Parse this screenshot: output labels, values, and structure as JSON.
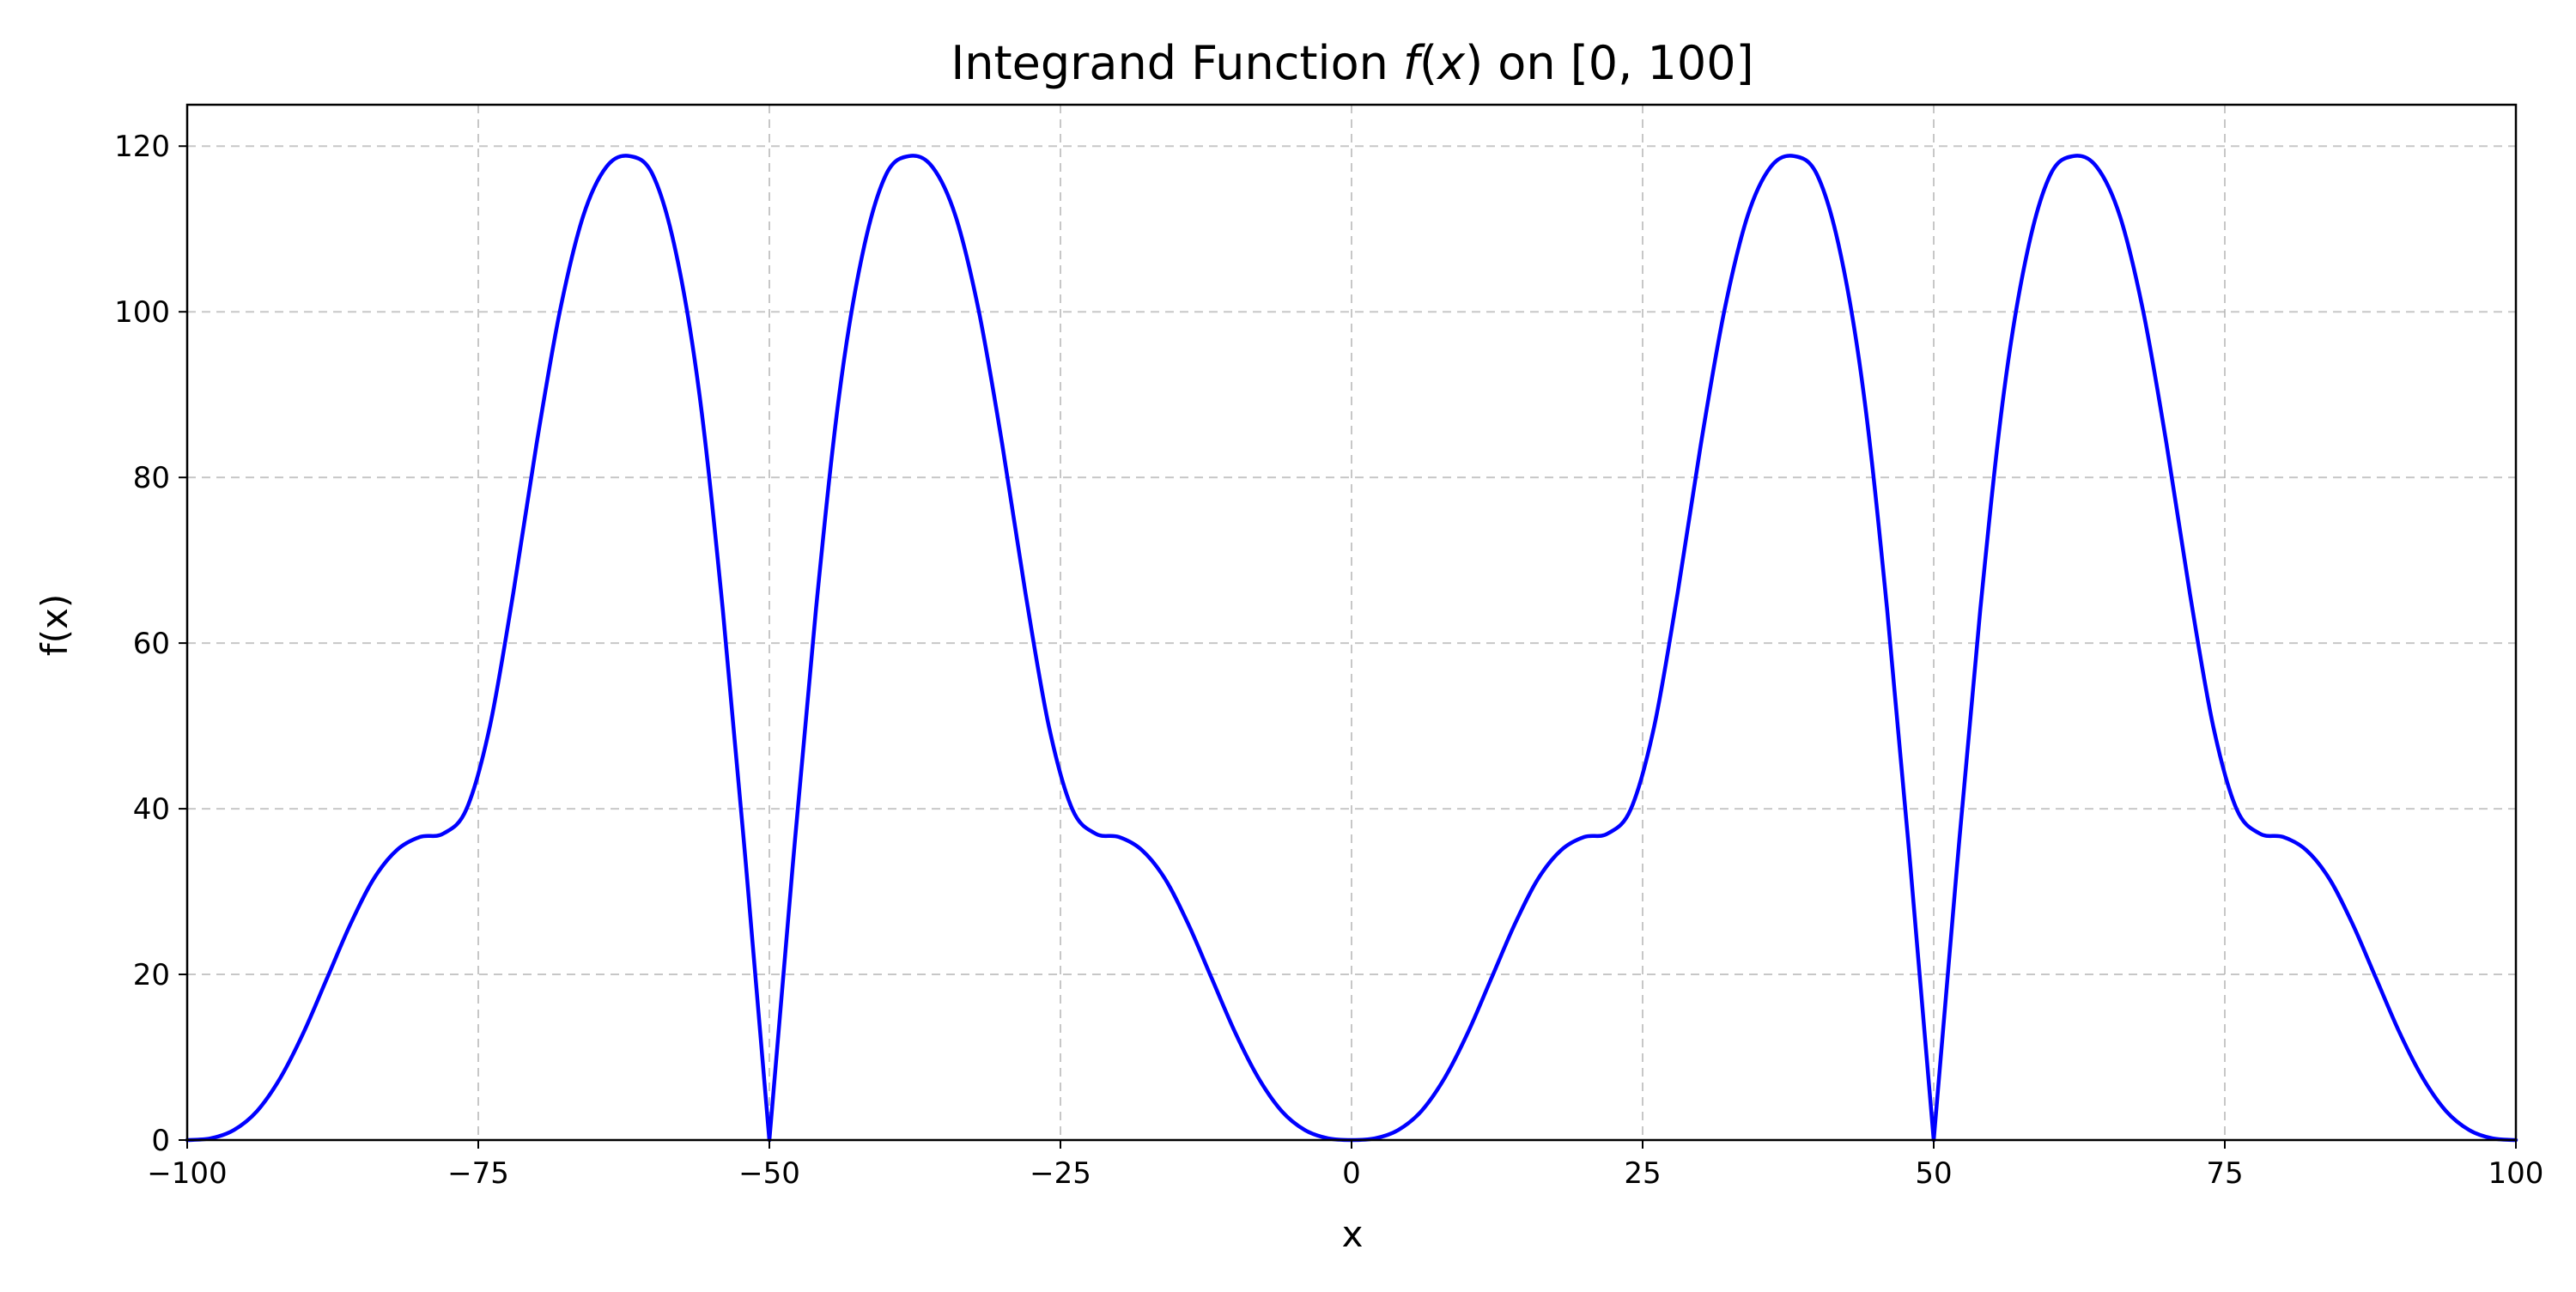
{
  "chart_data": {
    "type": "line",
    "title_parts": {
      "prefix": "Integrand Function ",
      "f": "f",
      "paren_open": "(",
      "x": "x",
      "paren_close": ")",
      "suffix": " on [0, 100]"
    },
    "xlabel": "x",
    "ylabel": "f(x)",
    "xlim": [
      -100,
      100
    ],
    "ylim": [
      0,
      125
    ],
    "x_ticks": [
      -100,
      -75,
      -50,
      -25,
      0,
      25,
      50,
      75,
      100
    ],
    "x_tick_labels": [
      "−100",
      "−75",
      "−50",
      "−25",
      "0",
      "25",
      "50",
      "75",
      "100"
    ],
    "y_ticks": [
      0,
      20,
      40,
      60,
      80,
      100,
      120
    ],
    "y_tick_labels": [
      "0",
      "20",
      "40",
      "60",
      "80",
      "100",
      "120"
    ],
    "grid": true,
    "series": [
      {
        "color": "#0000ff",
        "points": [
          [
            -100,
            0
          ],
          [
            -98,
            0.2
          ],
          [
            -96,
            1.2
          ],
          [
            -94,
            3.5
          ],
          [
            -92,
            7.5
          ],
          [
            -90,
            13.0
          ],
          [
            -88,
            19.5
          ],
          [
            -86,
            26.0
          ],
          [
            -84,
            31.5
          ],
          [
            -82,
            35.0
          ],
          [
            -80,
            36.6
          ],
          [
            -78,
            37.0
          ],
          [
            -76,
            40.0
          ],
          [
            -74,
            50.0
          ],
          [
            -72,
            66.0
          ],
          [
            -70,
            84.0
          ],
          [
            -68,
            100.0
          ],
          [
            -66,
            111.5
          ],
          [
            -64,
            117.5
          ],
          [
            -62,
            118.8
          ],
          [
            -60,
            116.5
          ],
          [
            -58,
            107.0
          ],
          [
            -56,
            90.0
          ],
          [
            -54,
            64.0
          ],
          [
            -52,
            33.0
          ],
          [
            -50,
            0
          ],
          [
            -48,
            33.0
          ],
          [
            -46,
            64.0
          ],
          [
            -44,
            90.0
          ],
          [
            -42,
            107.0
          ],
          [
            -40,
            116.5
          ],
          [
            -38,
            118.8
          ],
          [
            -36,
            117.5
          ],
          [
            -34,
            111.5
          ],
          [
            -32,
            100.0
          ],
          [
            -30,
            84.0
          ],
          [
            -28,
            66.0
          ],
          [
            -26,
            50.0
          ],
          [
            -24,
            40.0
          ],
          [
            -22,
            37.0
          ],
          [
            -20,
            36.6
          ],
          [
            -18,
            35.0
          ],
          [
            -16,
            31.5
          ],
          [
            -14,
            26.0
          ],
          [
            -12,
            19.5
          ],
          [
            -10,
            13.0
          ],
          [
            -8,
            7.5
          ],
          [
            -6,
            3.5
          ],
          [
            -4,
            1.2
          ],
          [
            -2,
            0.2
          ],
          [
            0,
            0
          ],
          [
            2,
            0.2
          ],
          [
            4,
            1.2
          ],
          [
            6,
            3.5
          ],
          [
            8,
            7.5
          ],
          [
            10,
            13.0
          ],
          [
            12,
            19.5
          ],
          [
            14,
            26.0
          ],
          [
            16,
            31.5
          ],
          [
            18,
            35.0
          ],
          [
            20,
            36.6
          ],
          [
            22,
            37.0
          ],
          [
            24,
            40.0
          ],
          [
            26,
            50.0
          ],
          [
            28,
            66.0
          ],
          [
            30,
            84.0
          ],
          [
            32,
            100.0
          ],
          [
            34,
            111.5
          ],
          [
            36,
            117.5
          ],
          [
            38,
            118.8
          ],
          [
            40,
            116.5
          ],
          [
            42,
            107.0
          ],
          [
            44,
            90.0
          ],
          [
            46,
            64.0
          ],
          [
            48,
            33.0
          ],
          [
            50,
            0
          ],
          [
            52,
            33.0
          ],
          [
            54,
            64.0
          ],
          [
            56,
            90.0
          ],
          [
            58,
            107.0
          ],
          [
            60,
            116.5
          ],
          [
            62,
            118.8
          ],
          [
            64,
            117.5
          ],
          [
            66,
            111.5
          ],
          [
            68,
            100.0
          ],
          [
            70,
            84.0
          ],
          [
            72,
            66.0
          ],
          [
            74,
            50.0
          ],
          [
            76,
            40.0
          ],
          [
            78,
            37.0
          ],
          [
            80,
            36.6
          ],
          [
            82,
            35.0
          ],
          [
            84,
            31.5
          ],
          [
            86,
            26.0
          ],
          [
            88,
            19.5
          ],
          [
            90,
            13.0
          ],
          [
            92,
            7.5
          ],
          [
            94,
            3.5
          ],
          [
            96,
            1.2
          ],
          [
            98,
            0.2
          ],
          [
            100,
            0
          ]
        ]
      }
    ]
  }
}
